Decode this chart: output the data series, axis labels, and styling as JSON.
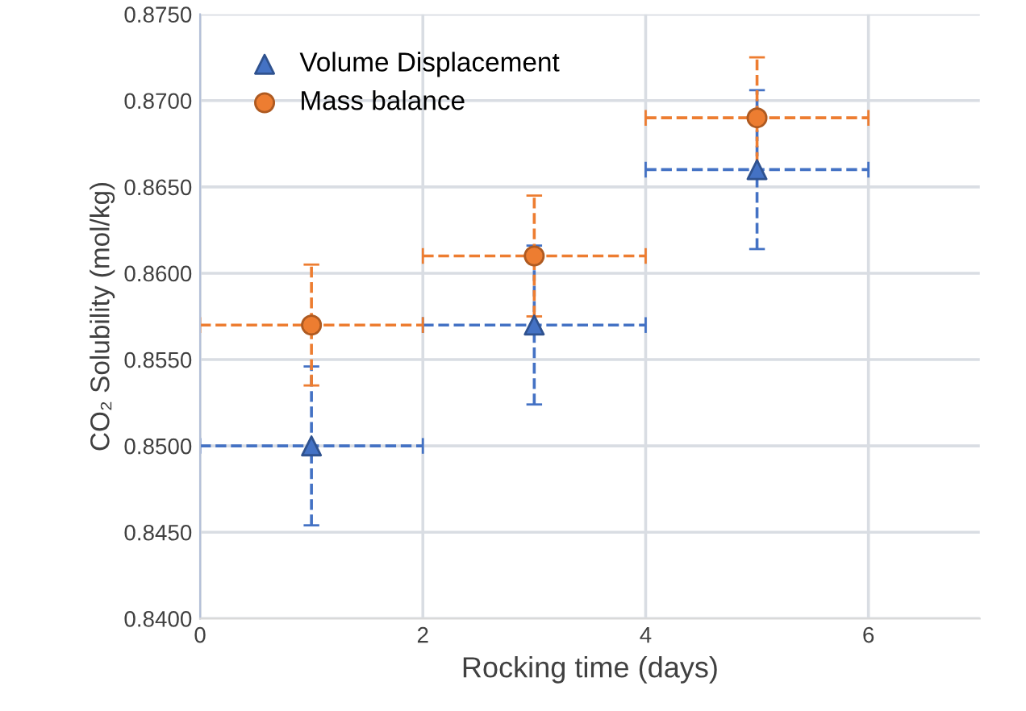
{
  "chart_data": {
    "type": "scatter",
    "xlabel": "Rocking time (days)",
    "ylabel": "CO₂ Solubility (mol/kg)",
    "xlim": [
      0,
      7
    ],
    "xticks": [
      0,
      2,
      4,
      6
    ],
    "ylim": [
      0.84,
      0.875
    ],
    "yticks": [
      {
        "value": 0.84,
        "label": "0.8400"
      },
      {
        "value": 0.845,
        "label": "0.8450"
      },
      {
        "value": 0.85,
        "label": "0.8500"
      },
      {
        "value": 0.855,
        "label": "0.8550"
      },
      {
        "value": 0.86,
        "label": "0.8600"
      },
      {
        "value": 0.865,
        "label": "0.8650"
      },
      {
        "value": 0.87,
        "label": "0.8700"
      },
      {
        "value": 0.875,
        "label": "0.8750"
      }
    ],
    "grid": true,
    "legend": "top left",
    "line_style": "dashed",
    "series": [
      {
        "name": "Volume Displacement",
        "color": "#4472c4",
        "marker": "triangle",
        "x": [
          1,
          3,
          5
        ],
        "values": [
          0.85,
          0.857,
          0.866
        ],
        "errors": [
          0.0046,
          0.0046,
          0.0046
        ],
        "xerrors": [
          1,
          1,
          1
        ]
      },
      {
        "name": "Mass balance",
        "color": "#ed7d31",
        "marker": "circle",
        "x": [
          1,
          3,
          5
        ],
        "values": [
          0.857,
          0.861,
          0.869
        ],
        "errors": [
          0.0035,
          0.0035,
          0.0035
        ],
        "xerrors": [
          1,
          1,
          1
        ]
      }
    ]
  }
}
